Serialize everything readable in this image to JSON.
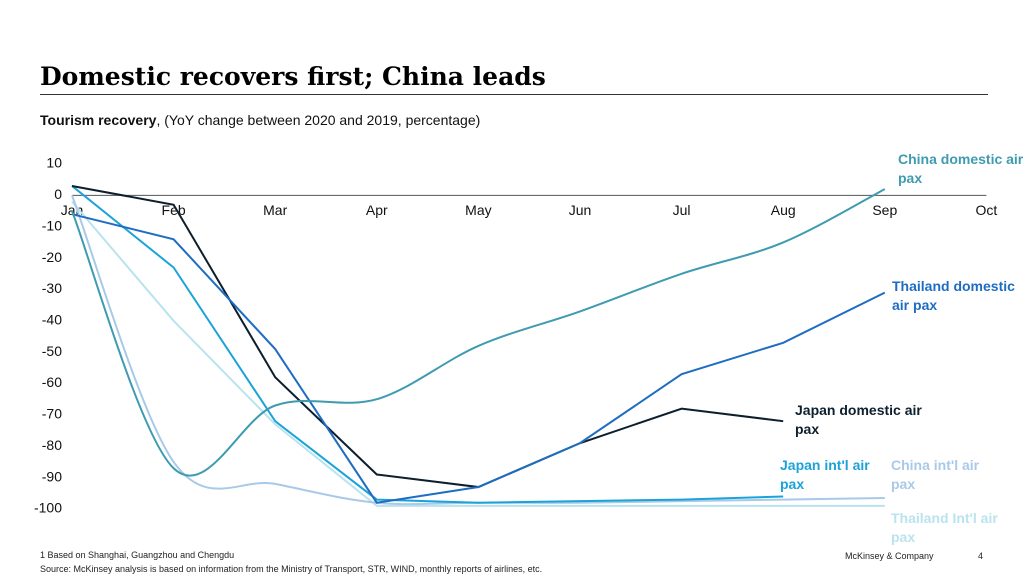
{
  "chart_data": {
    "type": "line",
    "title": "Domestic recovers first; China leads",
    "subtitle": "Tourism recovery",
    "subtitle_note": "(YoY change between 2020 and 2019, percentage)",
    "categories": [
      "Jan",
      "Feb",
      "Mar",
      "Apr",
      "May",
      "Jun",
      "Jul",
      "Aug",
      "Sep",
      "Oct"
    ],
    "ylim": [
      -100,
      10
    ],
    "yticks": [
      10,
      0,
      -10,
      -20,
      -30,
      -40,
      -50,
      -60,
      -70,
      -80,
      -90,
      -100
    ],
    "series": [
      {
        "name": "China domestic air pax",
        "color": "#3f9bb0",
        "smooth": true,
        "values": [
          -5,
          -87,
          -67,
          -65,
          -48,
          -37,
          -25,
          -15,
          2,
          null
        ]
      },
      {
        "name": "Thailand domestic air pax",
        "color": "#1f6dc2",
        "smooth": false,
        "values": [
          -6,
          -14,
          -49,
          -98,
          -93,
          -79,
          -57,
          -47,
          -31,
          null
        ]
      },
      {
        "name": "Japan domestic air pax",
        "color": "#0d1f2d",
        "smooth": false,
        "values": [
          3,
          -3,
          -58,
          -89,
          -93,
          -79,
          -68,
          -72,
          null,
          null
        ]
      },
      {
        "name": "Japan int'l air pax",
        "color": "#1ba3d9",
        "smooth": false,
        "values": [
          3,
          -23,
          -72,
          -97,
          -98,
          -97.5,
          -97,
          -96,
          null,
          null
        ]
      },
      {
        "name": "China int'l air pax",
        "color": "#a9c9e8",
        "smooth": true,
        "values": [
          0,
          -85,
          -92,
          -98,
          -98,
          -98,
          -97.5,
          -97,
          -96.5,
          null
        ]
      },
      {
        "name": "Thailand Int'l air pax",
        "color": "#b9e3ef",
        "smooth": false,
        "values": [
          -2,
          -40,
          -73,
          -99,
          -99,
          -99,
          -99,
          -99,
          -99,
          null
        ]
      }
    ],
    "footnote": "1 Based on Shanghai, Guangzhou and Chengdu",
    "source": "Source: McKinsey analysis is based on information from the Ministry of Transport, STR, WIND, monthly reports of airlines, etc.",
    "brand": "McKinsey & Company",
    "page_number": "4"
  }
}
